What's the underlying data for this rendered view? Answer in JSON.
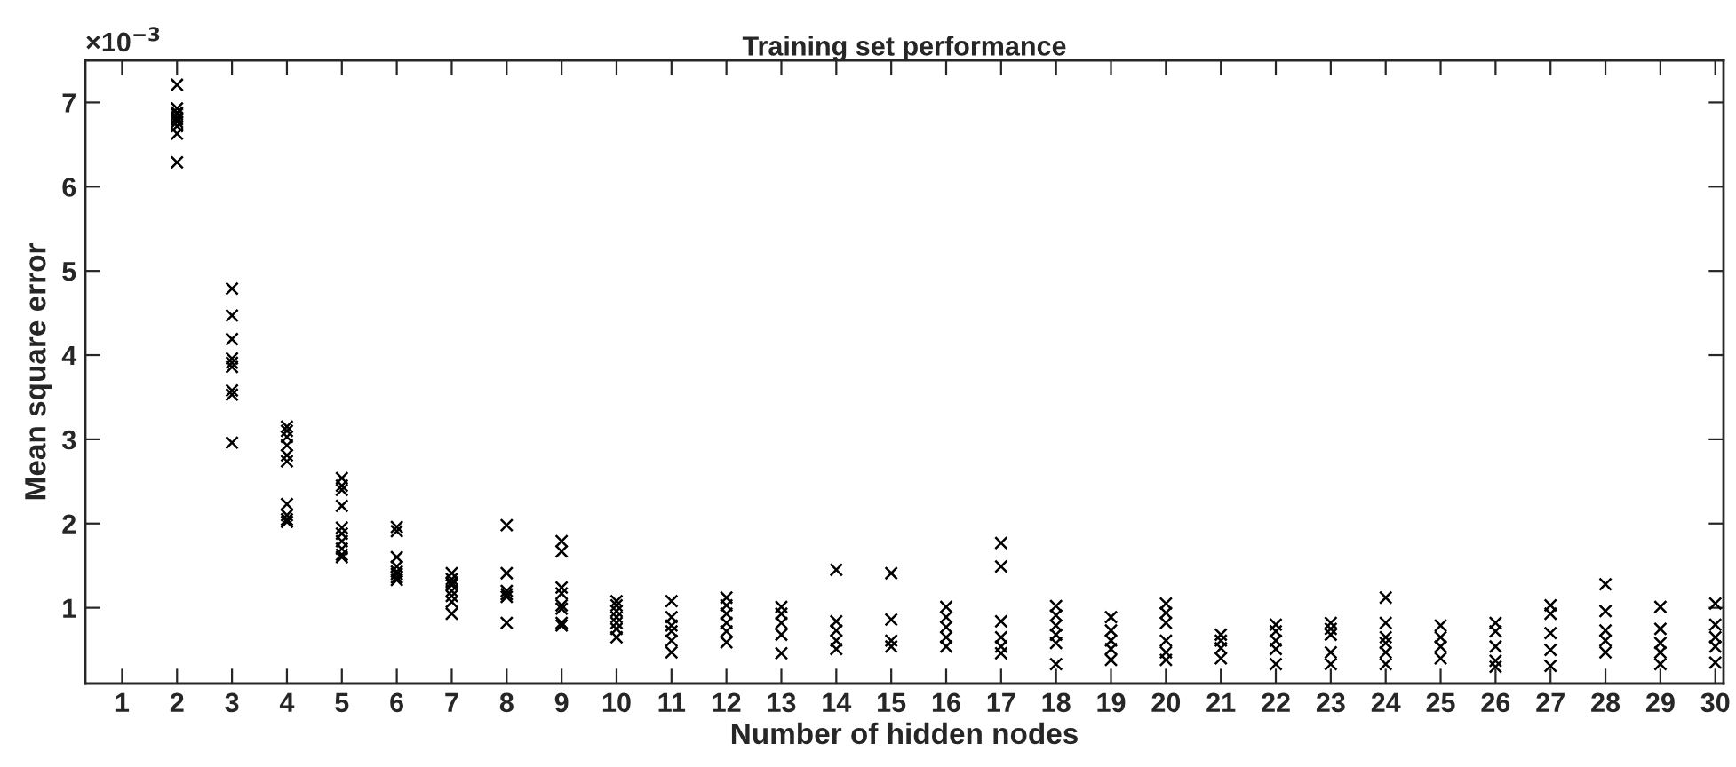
{
  "chart_data": {
    "type": "scatter",
    "title": "Training set performance",
    "xlabel": "Number of hidden nodes",
    "ylabel": "Mean square error",
    "annotations": [
      "×10$^{−3}$"
    ],
    "x": [
      2,
      2,
      2,
      2,
      2,
      2,
      2,
      2,
      2,
      2,
      3,
      3,
      3,
      3,
      3,
      3,
      3,
      3,
      3,
      4,
      4,
      4,
      4,
      4,
      4,
      4,
      4,
      4,
      4,
      5,
      5,
      5,
      5,
      5,
      5,
      5,
      5,
      5,
      5,
      6,
      6,
      6,
      6,
      6,
      6,
      6,
      6,
      7,
      7,
      7,
      7,
      7,
      7,
      7,
      7,
      8,
      8,
      8,
      8,
      8,
      8,
      9,
      9,
      9,
      9,
      9,
      9,
      9,
      9,
      10,
      10,
      10,
      10,
      10,
      10,
      10,
      11,
      11,
      11,
      11,
      11,
      11,
      12,
      12,
      12,
      12,
      12,
      12,
      13,
      13,
      13,
      13,
      13,
      14,
      14,
      14,
      14,
      14,
      15,
      15,
      15,
      15,
      16,
      16,
      16,
      16,
      16,
      17,
      17,
      17,
      17,
      17,
      17,
      18,
      18,
      18,
      18,
      18,
      18,
      19,
      19,
      19,
      19,
      19,
      20,
      20,
      20,
      20,
      20,
      20,
      21,
      21,
      21,
      21,
      22,
      22,
      22,
      22,
      22,
      23,
      23,
      23,
      23,
      23,
      24,
      24,
      24,
      24,
      24,
      24,
      25,
      25,
      25,
      25,
      26,
      26,
      26,
      26,
      26,
      27,
      27,
      27,
      27,
      27,
      28,
      28,
      28,
      28,
      28,
      29,
      29,
      29,
      29,
      29,
      30,
      30,
      30,
      30,
      30
    ],
    "values": [
      7.21,
      6.93,
      6.88,
      6.86,
      6.82,
      6.8,
      6.77,
      6.72,
      6.63,
      6.29,
      4.79,
      4.47,
      4.19,
      3.96,
      3.91,
      3.86,
      3.58,
      3.53,
      2.96,
      3.15,
      3.1,
      3.03,
      2.93,
      2.81,
      2.74,
      2.23,
      2.1,
      2.05,
      2.02,
      2.54,
      2.45,
      2.4,
      2.21,
      1.95,
      1.88,
      1.79,
      1.7,
      1.63,
      1.6,
      1.96,
      1.91,
      1.6,
      1.49,
      1.43,
      1.4,
      1.36,
      1.33,
      1.41,
      1.34,
      1.3,
      1.27,
      1.2,
      1.14,
      1.07,
      0.93,
      1.98,
      1.41,
      1.2,
      1.16,
      1.13,
      0.82,
      1.79,
      1.67,
      1.24,
      1.17,
      1.03,
      0.99,
      0.82,
      0.79,
      1.08,
      1.03,
      0.96,
      0.89,
      0.82,
      0.75,
      0.65,
      1.08,
      0.89,
      0.79,
      0.72,
      0.61,
      0.47,
      1.12,
      1.03,
      0.93,
      0.82,
      0.72,
      0.59,
      1.01,
      0.93,
      0.82,
      0.68,
      0.46,
      1.45,
      0.84,
      0.73,
      0.61,
      0.51,
      1.41,
      0.86,
      0.61,
      0.54,
      1.01,
      0.89,
      0.77,
      0.65,
      0.54,
      1.77,
      1.49,
      0.84,
      0.65,
      0.54,
      0.46,
      1.02,
      0.91,
      0.79,
      0.68,
      0.58,
      0.33,
      0.89,
      0.73,
      0.61,
      0.51,
      0.38,
      1.05,
      0.94,
      0.82,
      0.61,
      0.47,
      0.38,
      0.68,
      0.61,
      0.52,
      0.4,
      0.8,
      0.72,
      0.61,
      0.51,
      0.33,
      0.82,
      0.75,
      0.68,
      0.47,
      0.33,
      1.12,
      0.82,
      0.65,
      0.58,
      0.47,
      0.33,
      0.79,
      0.65,
      0.54,
      0.4,
      0.82,
      0.72,
      0.54,
      0.37,
      0.3,
      1.03,
      0.93,
      0.7,
      0.5,
      0.31,
      1.28,
      0.96,
      0.73,
      0.61,
      0.47,
      1.01,
      0.75,
      0.58,
      0.47,
      0.33,
      1.05,
      0.8,
      0.65,
      0.54,
      0.35
    ],
    "color": "#000000",
    "marker": "cross",
    "grid": false,
    "xlim": [
      0.33,
      30.15
    ],
    "xticks": [
      1,
      2,
      3,
      4,
      5,
      6,
      7,
      8,
      9,
      10,
      11,
      12,
      13,
      14,
      15,
      16,
      17,
      18,
      19,
      20,
      21,
      22,
      23,
      24,
      25,
      26,
      27,
      28,
      29,
      30
    ],
    "ylim": [
      0.1,
      7.5
    ],
    "yticks": [
      1,
      2,
      3,
      4,
      5,
      6,
      7
    ]
  }
}
